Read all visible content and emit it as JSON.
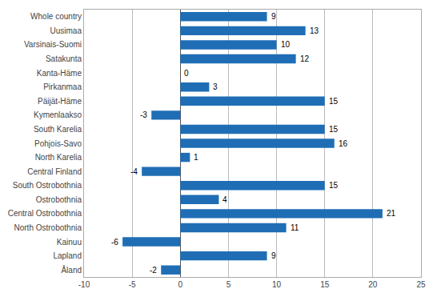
{
  "chart_data": {
    "type": "bar",
    "orientation": "horizontal",
    "categories": [
      "Whole country",
      "Uusimaa",
      "Varsinais-Suomi",
      "Satakunta",
      "Kanta-Häme",
      "Pirkanmaa",
      "Päijät-Häme",
      "Kymenlaakso",
      "South Karelia",
      "Pohjois-Savo",
      "North Karelia",
      "Central Finland",
      "South Ostrobothnia",
      "Ostrobothnia",
      "Central Ostrobothnia",
      "North Ostrobothnia",
      "Kainuu",
      "Lapland",
      "Åland"
    ],
    "values": [
      9,
      13,
      10,
      12,
      0,
      3,
      15,
      -3,
      15,
      16,
      1,
      -4,
      15,
      4,
      21,
      11,
      -6,
      9,
      -2
    ],
    "color": "#1F6EB5",
    "xlim": [
      -10,
      25
    ],
    "xticks": [
      -10,
      -5,
      0,
      5,
      10,
      15,
      20,
      25
    ],
    "grid": true,
    "data_labels": true
  }
}
